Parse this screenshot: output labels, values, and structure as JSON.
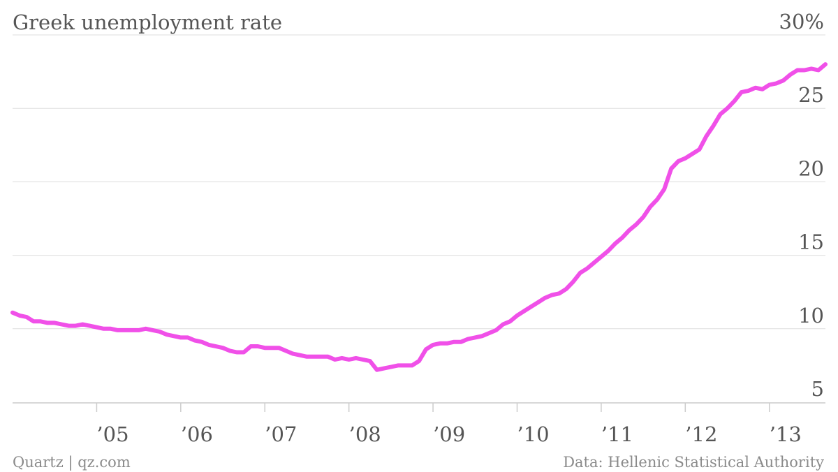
{
  "page": {
    "footer_left": "Quartz | qz.com",
    "footer_right": "Data: Hellenic Statistical Authority"
  },
  "chart_data": {
    "type": "line",
    "title": "Greek unemployment rate",
    "ylabel": "",
    "xlabel": "",
    "ylim": [
      5,
      30
    ],
    "xlim": [
      "2004-01",
      "2013-09"
    ],
    "grid": true,
    "line_color": "#f050e8",
    "grid_color": "#dddddd",
    "y_ticks": [
      {
        "value": 30,
        "label": "30%"
      },
      {
        "value": 25,
        "label": "25"
      },
      {
        "value": 20,
        "label": "20"
      },
      {
        "value": 15,
        "label": "15"
      },
      {
        "value": 10,
        "label": "10"
      },
      {
        "value": 5,
        "label": "5"
      }
    ],
    "x_ticks": [
      {
        "date": "2005-01",
        "label": "’05"
      },
      {
        "date": "2006-01",
        "label": "’06"
      },
      {
        "date": "2007-01",
        "label": "’07"
      },
      {
        "date": "2008-01",
        "label": "’08"
      },
      {
        "date": "2009-01",
        "label": "’09"
      },
      {
        "date": "2010-01",
        "label": "’10"
      },
      {
        "date": "2011-01",
        "label": "’11"
      },
      {
        "date": "2012-01",
        "label": "’12"
      },
      {
        "date": "2013-01",
        "label": "’13"
      }
    ],
    "series": [
      {
        "name": "",
        "points": [
          [
            "2004-01",
            11.1
          ],
          [
            "2004-02",
            10.9
          ],
          [
            "2004-03",
            10.8
          ],
          [
            "2004-04",
            10.5
          ],
          [
            "2004-05",
            10.5
          ],
          [
            "2004-06",
            10.4
          ],
          [
            "2004-07",
            10.4
          ],
          [
            "2004-08",
            10.3
          ],
          [
            "2004-09",
            10.2
          ],
          [
            "2004-10",
            10.2
          ],
          [
            "2004-11",
            10.3
          ],
          [
            "2004-12",
            10.2
          ],
          [
            "2005-01",
            10.1
          ],
          [
            "2005-02",
            10.0
          ],
          [
            "2005-03",
            10.0
          ],
          [
            "2005-04",
            9.9
          ],
          [
            "2005-05",
            9.9
          ],
          [
            "2005-06",
            9.9
          ],
          [
            "2005-07",
            9.9
          ],
          [
            "2005-08",
            10.0
          ],
          [
            "2005-09",
            9.9
          ],
          [
            "2005-10",
            9.8
          ],
          [
            "2005-11",
            9.6
          ],
          [
            "2005-12",
            9.5
          ],
          [
            "2006-01",
            9.4
          ],
          [
            "2006-02",
            9.4
          ],
          [
            "2006-03",
            9.2
          ],
          [
            "2006-04",
            9.1
          ],
          [
            "2006-05",
            8.9
          ],
          [
            "2006-06",
            8.8
          ],
          [
            "2006-07",
            8.7
          ],
          [
            "2006-08",
            8.5
          ],
          [
            "2006-09",
            8.4
          ],
          [
            "2006-10",
            8.4
          ],
          [
            "2006-11",
            8.8
          ],
          [
            "2006-12",
            8.8
          ],
          [
            "2007-01",
            8.7
          ],
          [
            "2007-02",
            8.7
          ],
          [
            "2007-03",
            8.7
          ],
          [
            "2007-04",
            8.5
          ],
          [
            "2007-05",
            8.3
          ],
          [
            "2007-06",
            8.2
          ],
          [
            "2007-07",
            8.1
          ],
          [
            "2007-08",
            8.1
          ],
          [
            "2007-09",
            8.1
          ],
          [
            "2007-10",
            8.1
          ],
          [
            "2007-11",
            7.9
          ],
          [
            "2007-12",
            8.0
          ],
          [
            "2008-01",
            7.9
          ],
          [
            "2008-02",
            8.0
          ],
          [
            "2008-03",
            7.9
          ],
          [
            "2008-04",
            7.8
          ],
          [
            "2008-05",
            7.2
          ],
          [
            "2008-06",
            7.3
          ],
          [
            "2008-07",
            7.4
          ],
          [
            "2008-08",
            7.5
          ],
          [
            "2008-09",
            7.5
          ],
          [
            "2008-10",
            7.5
          ],
          [
            "2008-11",
            7.8
          ],
          [
            "2008-12",
            8.6
          ],
          [
            "2009-01",
            8.9
          ],
          [
            "2009-02",
            9.0
          ],
          [
            "2009-03",
            9.0
          ],
          [
            "2009-04",
            9.1
          ],
          [
            "2009-05",
            9.1
          ],
          [
            "2009-06",
            9.3
          ],
          [
            "2009-07",
            9.4
          ],
          [
            "2009-08",
            9.5
          ],
          [
            "2009-09",
            9.7
          ],
          [
            "2009-10",
            9.9
          ],
          [
            "2009-11",
            10.3
          ],
          [
            "2009-12",
            10.5
          ],
          [
            "2010-01",
            10.9
          ],
          [
            "2010-02",
            11.2
          ],
          [
            "2010-03",
            11.5
          ],
          [
            "2010-04",
            11.8
          ],
          [
            "2010-05",
            12.1
          ],
          [
            "2010-06",
            12.3
          ],
          [
            "2010-07",
            12.4
          ],
          [
            "2010-08",
            12.7
          ],
          [
            "2010-09",
            13.2
          ],
          [
            "2010-10",
            13.8
          ],
          [
            "2010-11",
            14.1
          ],
          [
            "2010-12",
            14.5
          ],
          [
            "2011-01",
            14.9
          ],
          [
            "2011-02",
            15.3
          ],
          [
            "2011-03",
            15.8
          ],
          [
            "2011-04",
            16.2
          ],
          [
            "2011-05",
            16.7
          ],
          [
            "2011-06",
            17.1
          ],
          [
            "2011-07",
            17.6
          ],
          [
            "2011-08",
            18.3
          ],
          [
            "2011-09",
            18.8
          ],
          [
            "2011-10",
            19.5
          ],
          [
            "2011-11",
            20.9
          ],
          [
            "2011-12",
            21.4
          ],
          [
            "2012-01",
            21.6
          ],
          [
            "2012-02",
            21.9
          ],
          [
            "2012-03",
            22.2
          ],
          [
            "2012-04",
            23.1
          ],
          [
            "2012-05",
            23.8
          ],
          [
            "2012-06",
            24.6
          ],
          [
            "2012-07",
            25.0
          ],
          [
            "2012-08",
            25.5
          ],
          [
            "2012-09",
            26.1
          ],
          [
            "2012-10",
            26.2
          ],
          [
            "2012-11",
            26.4
          ],
          [
            "2012-12",
            26.3
          ],
          [
            "2013-01",
            26.6
          ],
          [
            "2013-02",
            26.7
          ],
          [
            "2013-03",
            26.9
          ],
          [
            "2013-04",
            27.3
          ],
          [
            "2013-05",
            27.6
          ],
          [
            "2013-06",
            27.6
          ],
          [
            "2013-07",
            27.7
          ],
          [
            "2013-08",
            27.6
          ],
          [
            "2013-09",
            28.0
          ]
        ]
      }
    ]
  }
}
